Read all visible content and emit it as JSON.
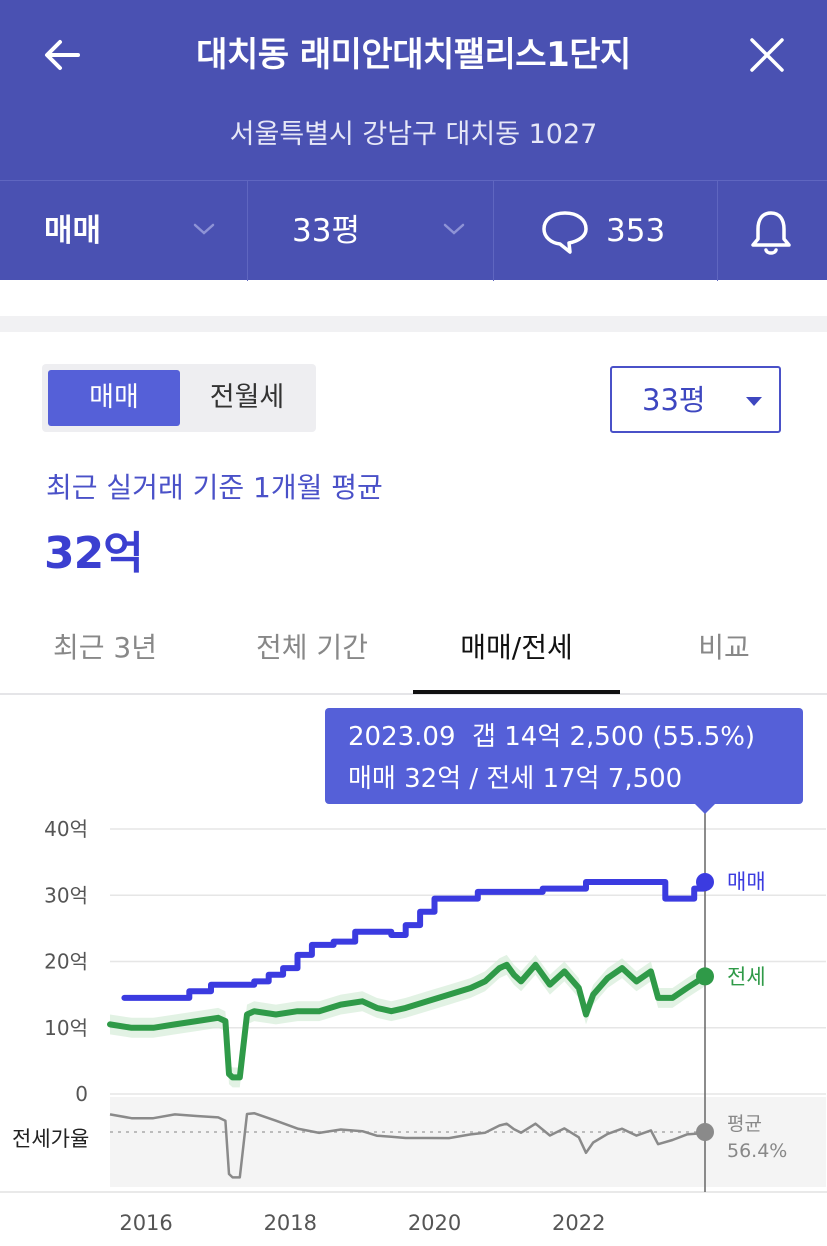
{
  "header": {
    "title": "대치동 래미안대치팰리스1단지",
    "address": "서울특별시 강남구 대치동 1027",
    "trade_type": "매매",
    "size": "33평",
    "comment_count": "353"
  },
  "trade_toggle": {
    "options": [
      "매매",
      "전월세"
    ],
    "selected": "매매"
  },
  "size_select": {
    "value": "33평"
  },
  "average": {
    "caption": "최근 실거래 기준 1개월 평균",
    "price": "32억"
  },
  "tabs": [
    {
      "label": "최근 3년"
    },
    {
      "label": "전체 기간"
    },
    {
      "label": "매매/전세",
      "selected": true
    },
    {
      "label": "비교"
    }
  ],
  "tooltip": {
    "line1": "2023.09  갭 14억 2,500 (55.5%)",
    "line2": "매매 32억 / 전세 17억 7,500"
  },
  "colors": {
    "header": "#4a51b2",
    "accent": "#5560d8",
    "sale": "#3b3be0",
    "jeonse": "#2f9a48",
    "ratio": "#888888"
  },
  "chart_data": {
    "type": "line",
    "y_unit": "억",
    "ylim": [
      0,
      40
    ],
    "yticks": [
      "40억",
      "30억",
      "20억",
      "10억",
      "0"
    ],
    "xticks": [
      "2016",
      "2018",
      "2020",
      "2022"
    ],
    "series": [
      {
        "name": "매매",
        "x": [
          2015.7,
          2016.0,
          2016.3,
          2016.6,
          2016.9,
          2017.2,
          2017.5,
          2017.7,
          2017.9,
          2018.1,
          2018.3,
          2018.6,
          2018.9,
          2019.2,
          2019.4,
          2019.6,
          2019.8,
          2020.0,
          2020.3,
          2020.6,
          2020.9,
          2021.2,
          2021.5,
          2021.8,
          2022.1,
          2022.4,
          2022.7,
          2023.0,
          2023.2,
          2023.4,
          2023.6,
          2023.75
        ],
        "y": [
          14.5,
          14.5,
          14.5,
          15.5,
          16.5,
          16.5,
          17,
          18,
          19,
          21,
          22.5,
          23,
          24.5,
          24.5,
          24,
          25.5,
          27.5,
          29.5,
          29.5,
          30.5,
          30.5,
          30.5,
          31,
          31,
          32,
          32,
          32,
          32,
          29.5,
          29.5,
          31,
          32
        ]
      },
      {
        "name": "전세",
        "x": [
          2015.5,
          2015.8,
          2016.1,
          2016.4,
          2016.7,
          2017.0,
          2017.1,
          2017.15,
          2017.2,
          2017.3,
          2017.4,
          2017.5,
          2017.8,
          2018.1,
          2018.4,
          2018.7,
          2019.0,
          2019.2,
          2019.4,
          2019.6,
          2019.9,
          2020.2,
          2020.5,
          2020.7,
          2020.9,
          2021.0,
          2021.1,
          2021.2,
          2021.4,
          2021.6,
          2021.8,
          2022.0,
          2022.1,
          2022.2,
          2022.4,
          2022.6,
          2022.8,
          2023.0,
          2023.1,
          2023.3,
          2023.5,
          2023.75
        ],
        "y": [
          10.5,
          10,
          10,
          10.5,
          11,
          11.5,
          11,
          3,
          2.5,
          2.5,
          12,
          12.5,
          12,
          12.5,
          12.5,
          13.5,
          14,
          13,
          12.5,
          13,
          14,
          15,
          16,
          17,
          19,
          19.5,
          18,
          17,
          19.5,
          16.5,
          18.5,
          16,
          12,
          15,
          17.5,
          19,
          17,
          18.5,
          14.5,
          14.5,
          16,
          17.75
        ]
      }
    ],
    "series_labels": [
      "매매",
      "전세"
    ],
    "ratio_panel": {
      "label": "전세가율",
      "avg_label": "평균",
      "avg_value": "56.4%"
    }
  }
}
